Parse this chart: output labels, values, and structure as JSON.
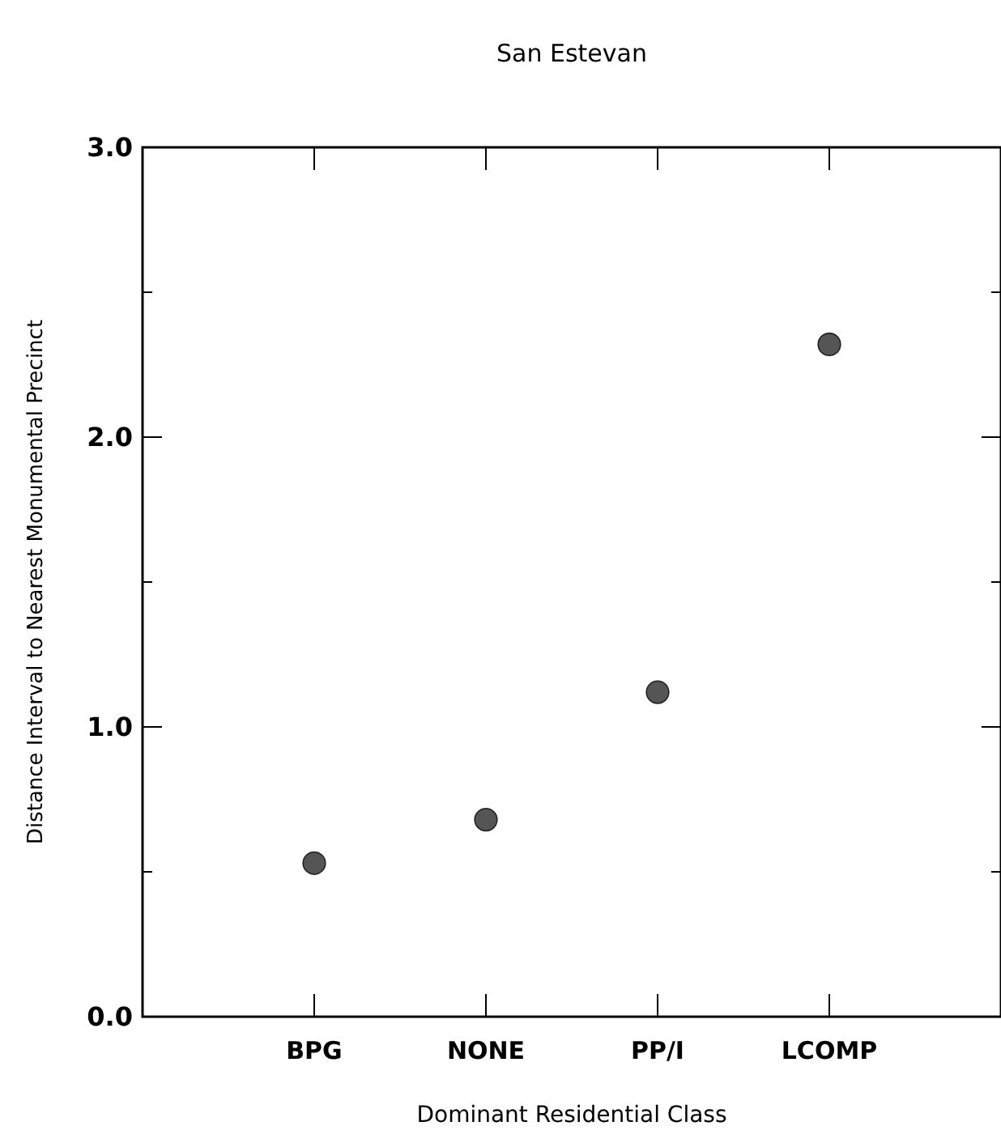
{
  "chart_data": {
    "type": "scatter",
    "title": "San Estevan",
    "xlabel": "Dominant Residential Class",
    "ylabel": "Distance Interval to Nearest Monumental Precinct",
    "categories": [
      "BPG",
      "NONE",
      "PP/I",
      "LCOMP"
    ],
    "values": [
      0.53,
      0.68,
      1.12,
      2.32
    ],
    "color": "#555555",
    "marker": "circle",
    "ylim": [
      0,
      3
    ],
    "yticks": [
      {
        "value": 0,
        "label": "0.0"
      },
      {
        "value": 0.5,
        "label": null
      },
      {
        "value": 1,
        "label": "1.0"
      },
      {
        "value": 1.5,
        "label": null
      },
      {
        "value": 2,
        "label": "2.0"
      },
      {
        "value": 2.5,
        "label": null
      },
      {
        "value": 3,
        "label": "3.0"
      }
    ],
    "grid": false
  }
}
